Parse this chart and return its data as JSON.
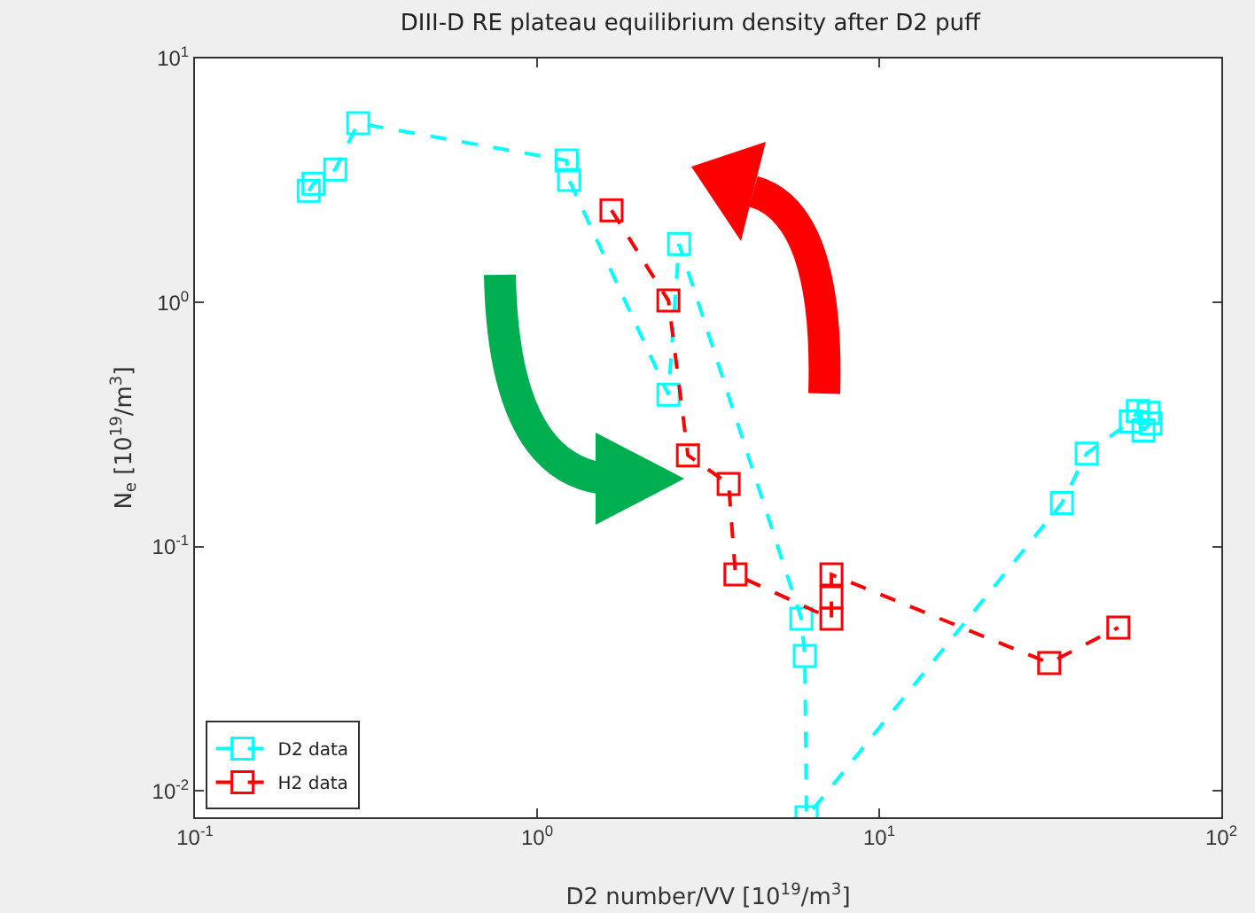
{
  "chart_data": {
    "type": "line",
    "title": "DIII-D RE plateau equilibrium density after D2 puff",
    "xlabel": "D2 number/VV [10$^{19}$/m$^{3}$]",
    "ylabel": "N$_{e}$ [10$^{19}$/m$^{3}$]",
    "log": "xy",
    "grid": false,
    "legend": "bottom left",
    "marker": "square",
    "line_style": "dashed",
    "xlim": [
      0.1,
      100
    ],
    "ylim": [
      0.0078,
      10
    ],
    "xticks": [
      {
        "value": 0.1,
        "label": "10$^{-1}$"
      },
      {
        "value": 1,
        "label": "10$^{0}$"
      },
      {
        "value": 10,
        "label": "10$^{1}$"
      },
      {
        "value": 100,
        "label": "10$^{2}$"
      }
    ],
    "yticks": [
      {
        "value": 0.01,
        "label": "10$^{-2}$"
      },
      {
        "value": 0.1,
        "label": "10$^{-1}$"
      },
      {
        "value": 1,
        "label": "10$^{0}$"
      },
      {
        "value": 10,
        "label": "10$^{1}$"
      }
    ],
    "series": [
      {
        "name": "D2 data",
        "color": "#00ffff",
        "x": [
          0.215,
          0.222,
          0.257,
          0.3,
          1.22,
          1.24,
          2.42,
          2.6,
          5.92,
          6.06,
          6.13,
          34.2,
          40.4,
          54.4,
          57.0,
          61.3,
          59.2,
          62.1
        ],
        "values": [
          2.87,
          3.07,
          3.51,
          5.43,
          3.82,
          3.18,
          0.42,
          1.74,
          0.0507,
          0.0357,
          0.0078,
          0.151,
          0.241,
          0.326,
          0.36,
          0.354,
          0.3,
          0.32
        ]
      },
      {
        "name": "H2 data",
        "color": "#ff0000",
        "x": [
          1.65,
          2.42,
          2.76,
          3.63,
          3.8,
          7.25,
          7.25,
          7.25,
          31.4,
          50
        ],
        "values": [
          2.39,
          1.02,
          0.237,
          0.181,
          0.077,
          0.0507,
          0.062,
          0.077,
          0.0334,
          0.0467
        ]
      }
    ]
  }
}
